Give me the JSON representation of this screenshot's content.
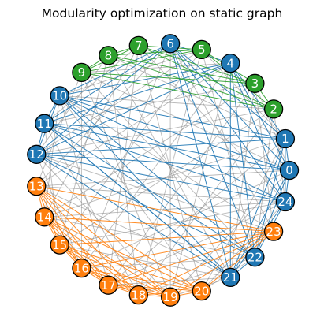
{
  "title": "Modularity optimization on static graph",
  "communities": {
    "blue": {
      "color": "#1f77b4",
      "nodes": [
        0,
        1,
        4,
        6,
        10,
        11,
        12,
        21,
        22,
        24
      ]
    },
    "green": {
      "color": "#2ca02c",
      "nodes": [
        2,
        3,
        5,
        7,
        8,
        9
      ]
    },
    "orange": {
      "color": "#ff7f0e",
      "nodes": [
        13,
        14,
        15,
        16,
        17,
        18,
        19,
        20,
        23
      ]
    }
  },
  "intra_edge_colors": {
    "blue": "#1f77b4",
    "green": "#2ca02c",
    "orange": "#ff7f0e"
  },
  "inter_edge_color": "#808080",
  "nodes": [
    {
      "id": 0,
      "label": "0",
      "community": "blue"
    },
    {
      "id": 1,
      "label": "1",
      "community": "blue"
    },
    {
      "id": 2,
      "label": "2",
      "community": "green"
    },
    {
      "id": 3,
      "label": "3",
      "community": "green"
    },
    {
      "id": 4,
      "label": "4",
      "community": "blue"
    },
    {
      "id": 5,
      "label": "5",
      "community": "green"
    },
    {
      "id": 6,
      "label": "6",
      "community": "blue"
    },
    {
      "id": 7,
      "label": "7",
      "community": "green"
    },
    {
      "id": 8,
      "label": "8",
      "community": "green"
    },
    {
      "id": 9,
      "label": "9",
      "community": "green"
    },
    {
      "id": 10,
      "label": "10",
      "community": "blue"
    },
    {
      "id": 11,
      "label": "11",
      "community": "blue"
    },
    {
      "id": 12,
      "label": "12",
      "community": "blue"
    },
    {
      "id": 13,
      "label": "13",
      "community": "orange"
    },
    {
      "id": 14,
      "label": "14",
      "community": "orange"
    },
    {
      "id": 15,
      "label": "15",
      "community": "orange"
    },
    {
      "id": 16,
      "label": "16",
      "community": "orange"
    },
    {
      "id": 17,
      "label": "17",
      "community": "orange"
    },
    {
      "id": 18,
      "label": "18",
      "community": "orange"
    },
    {
      "id": 19,
      "label": "19",
      "community": "orange"
    },
    {
      "id": 20,
      "label": "20",
      "community": "orange"
    },
    {
      "id": 21,
      "label": "21",
      "community": "blue"
    },
    {
      "id": 22,
      "label": "22",
      "community": "blue"
    },
    {
      "id": 23,
      "label": "23",
      "community": "orange"
    },
    {
      "id": 24,
      "label": "24",
      "community": "blue"
    }
  ],
  "edges": [
    [
      0,
      1
    ],
    [
      0,
      4
    ],
    [
      0,
      6
    ],
    [
      0,
      10
    ],
    [
      0,
      11
    ],
    [
      0,
      12
    ],
    [
      0,
      21
    ],
    [
      0,
      22
    ],
    [
      0,
      24
    ],
    [
      1,
      4
    ],
    [
      1,
      6
    ],
    [
      1,
      10
    ],
    [
      1,
      11
    ],
    [
      1,
      12
    ],
    [
      1,
      21
    ],
    [
      1,
      22
    ],
    [
      1,
      24
    ],
    [
      4,
      6
    ],
    [
      4,
      10
    ],
    [
      4,
      11
    ],
    [
      4,
      12
    ],
    [
      4,
      21
    ],
    [
      4,
      22
    ],
    [
      4,
      24
    ],
    [
      6,
      10
    ],
    [
      6,
      11
    ],
    [
      6,
      12
    ],
    [
      6,
      21
    ],
    [
      6,
      22
    ],
    [
      6,
      24
    ],
    [
      10,
      11
    ],
    [
      10,
      12
    ],
    [
      10,
      21
    ],
    [
      10,
      22
    ],
    [
      10,
      24
    ],
    [
      11,
      12
    ],
    [
      11,
      21
    ],
    [
      11,
      22
    ],
    [
      11,
      24
    ],
    [
      12,
      21
    ],
    [
      12,
      22
    ],
    [
      12,
      24
    ],
    [
      21,
      22
    ],
    [
      21,
      24
    ],
    [
      22,
      24
    ],
    [
      2,
      3
    ],
    [
      2,
      5
    ],
    [
      2,
      7
    ],
    [
      2,
      8
    ],
    [
      2,
      9
    ],
    [
      3,
      5
    ],
    [
      3,
      7
    ],
    [
      3,
      8
    ],
    [
      3,
      9
    ],
    [
      5,
      7
    ],
    [
      5,
      8
    ],
    [
      5,
      9
    ],
    [
      7,
      8
    ],
    [
      7,
      9
    ],
    [
      8,
      9
    ],
    [
      13,
      14
    ],
    [
      13,
      15
    ],
    [
      13,
      16
    ],
    [
      13,
      17
    ],
    [
      13,
      18
    ],
    [
      13,
      19
    ],
    [
      13,
      20
    ],
    [
      13,
      23
    ],
    [
      14,
      15
    ],
    [
      14,
      16
    ],
    [
      14,
      17
    ],
    [
      14,
      18
    ],
    [
      14,
      19
    ],
    [
      14,
      20
    ],
    [
      14,
      23
    ],
    [
      15,
      16
    ],
    [
      15,
      17
    ],
    [
      15,
      18
    ],
    [
      15,
      19
    ],
    [
      15,
      20
    ],
    [
      15,
      23
    ],
    [
      16,
      17
    ],
    [
      16,
      18
    ],
    [
      16,
      19
    ],
    [
      16,
      20
    ],
    [
      16,
      23
    ],
    [
      17,
      18
    ],
    [
      17,
      19
    ],
    [
      17,
      20
    ],
    [
      17,
      23
    ],
    [
      18,
      19
    ],
    [
      18,
      20
    ],
    [
      18,
      23
    ],
    [
      19,
      20
    ],
    [
      19,
      23
    ],
    [
      20,
      23
    ],
    [
      0,
      3
    ],
    [
      0,
      9
    ],
    [
      0,
      13
    ],
    [
      0,
      16
    ],
    [
      0,
      19
    ],
    [
      1,
      5
    ],
    [
      1,
      8
    ],
    [
      1,
      14
    ],
    [
      1,
      17
    ],
    [
      1,
      20
    ],
    [
      2,
      10
    ],
    [
      2,
      12
    ],
    [
      2,
      15
    ],
    [
      2,
      18
    ],
    [
      2,
      22
    ],
    [
      2,
      24
    ],
    [
      3,
      11
    ],
    [
      3,
      14
    ],
    [
      3,
      17
    ],
    [
      3,
      21
    ],
    [
      3,
      23
    ],
    [
      4,
      9
    ],
    [
      4,
      13
    ],
    [
      4,
      16
    ],
    [
      4,
      19
    ],
    [
      5,
      10
    ],
    [
      5,
      12
    ],
    [
      5,
      15
    ],
    [
      5,
      18
    ],
    [
      5,
      22
    ],
    [
      6,
      13
    ],
    [
      6,
      16
    ],
    [
      6,
      19
    ],
    [
      6,
      23
    ],
    [
      7,
      11
    ],
    [
      7,
      14
    ],
    [
      7,
      17
    ],
    [
      7,
      20
    ],
    [
      7,
      24
    ],
    [
      8,
      12
    ],
    [
      8,
      15
    ],
    [
      8,
      18
    ],
    [
      8,
      21
    ],
    [
      9,
      13
    ],
    [
      9,
      16
    ],
    [
      9,
      19
    ],
    [
      9,
      22
    ],
    [
      10,
      14
    ],
    [
      10,
      17
    ],
    [
      10,
      20
    ],
    [
      10,
      23
    ],
    [
      11,
      15
    ],
    [
      11,
      18
    ],
    [
      11,
      21
    ],
    [
      12,
      16
    ],
    [
      12,
      19
    ],
    [
      12,
      23
    ],
    [
      13,
      21
    ],
    [
      13,
      24
    ],
    [
      14,
      22
    ],
    [
      14,
      24
    ],
    [
      15,
      21
    ],
    [
      15,
      24
    ],
    [
      16,
      22
    ],
    [
      17,
      21
    ],
    [
      17,
      24
    ],
    [
      18,
      22
    ],
    [
      19,
      21
    ],
    [
      20,
      22
    ],
    [
      20,
      24
    ]
  ]
}
